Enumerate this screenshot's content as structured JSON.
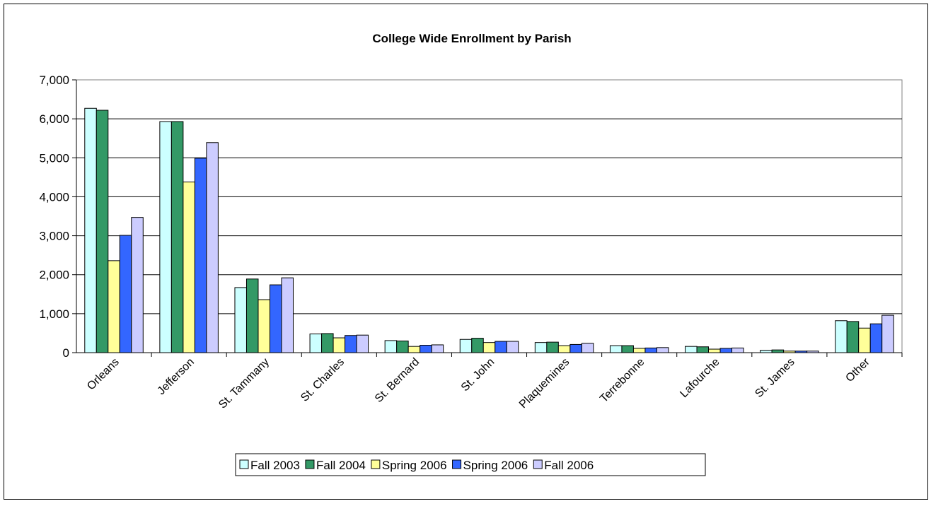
{
  "chart_data": {
    "type": "bar",
    "title": "College Wide Enrollment by Parish",
    "xlabel": "",
    "ylabel": "",
    "ylim": [
      0,
      7000
    ],
    "yticks": [
      "0",
      "1,000",
      "2,000",
      "3,000",
      "4,000",
      "5,000",
      "6,000",
      "7,000"
    ],
    "grid": true,
    "legend_position": "bottom",
    "categories": [
      "Orleans",
      "Jefferson",
      "St. Tammany",
      "St. Charles",
      "St. Bernard",
      "St. John",
      "Plaquemines",
      "Terrebonne",
      "Lafourche",
      "St. James",
      "Other"
    ],
    "series": [
      {
        "name": "Fall 2003",
        "color": "#CCFFFF",
        "values": [
          6270,
          5930,
          1670,
          480,
          310,
          340,
          260,
          180,
          160,
          60,
          820
        ]
      },
      {
        "name": "Fall 2004",
        "color": "#339966",
        "values": [
          6220,
          5930,
          1890,
          490,
          300,
          370,
          270,
          180,
          150,
          70,
          800
        ]
      },
      {
        "name": "Spring 2006",
        "color": "#FFFF99",
        "values": [
          2360,
          4380,
          1360,
          380,
          160,
          260,
          180,
          110,
          90,
          40,
          630
        ]
      },
      {
        "name": "Spring 2006",
        "color": "#3366FF",
        "values": [
          3010,
          4990,
          1740,
          440,
          190,
          290,
          210,
          120,
          110,
          40,
          740
        ]
      },
      {
        "name": "Fall 2006",
        "color": "#CCCCFF",
        "values": [
          3470,
          5390,
          1920,
          450,
          200,
          290,
          240,
          130,
          120,
          40,
          960
        ]
      }
    ]
  }
}
